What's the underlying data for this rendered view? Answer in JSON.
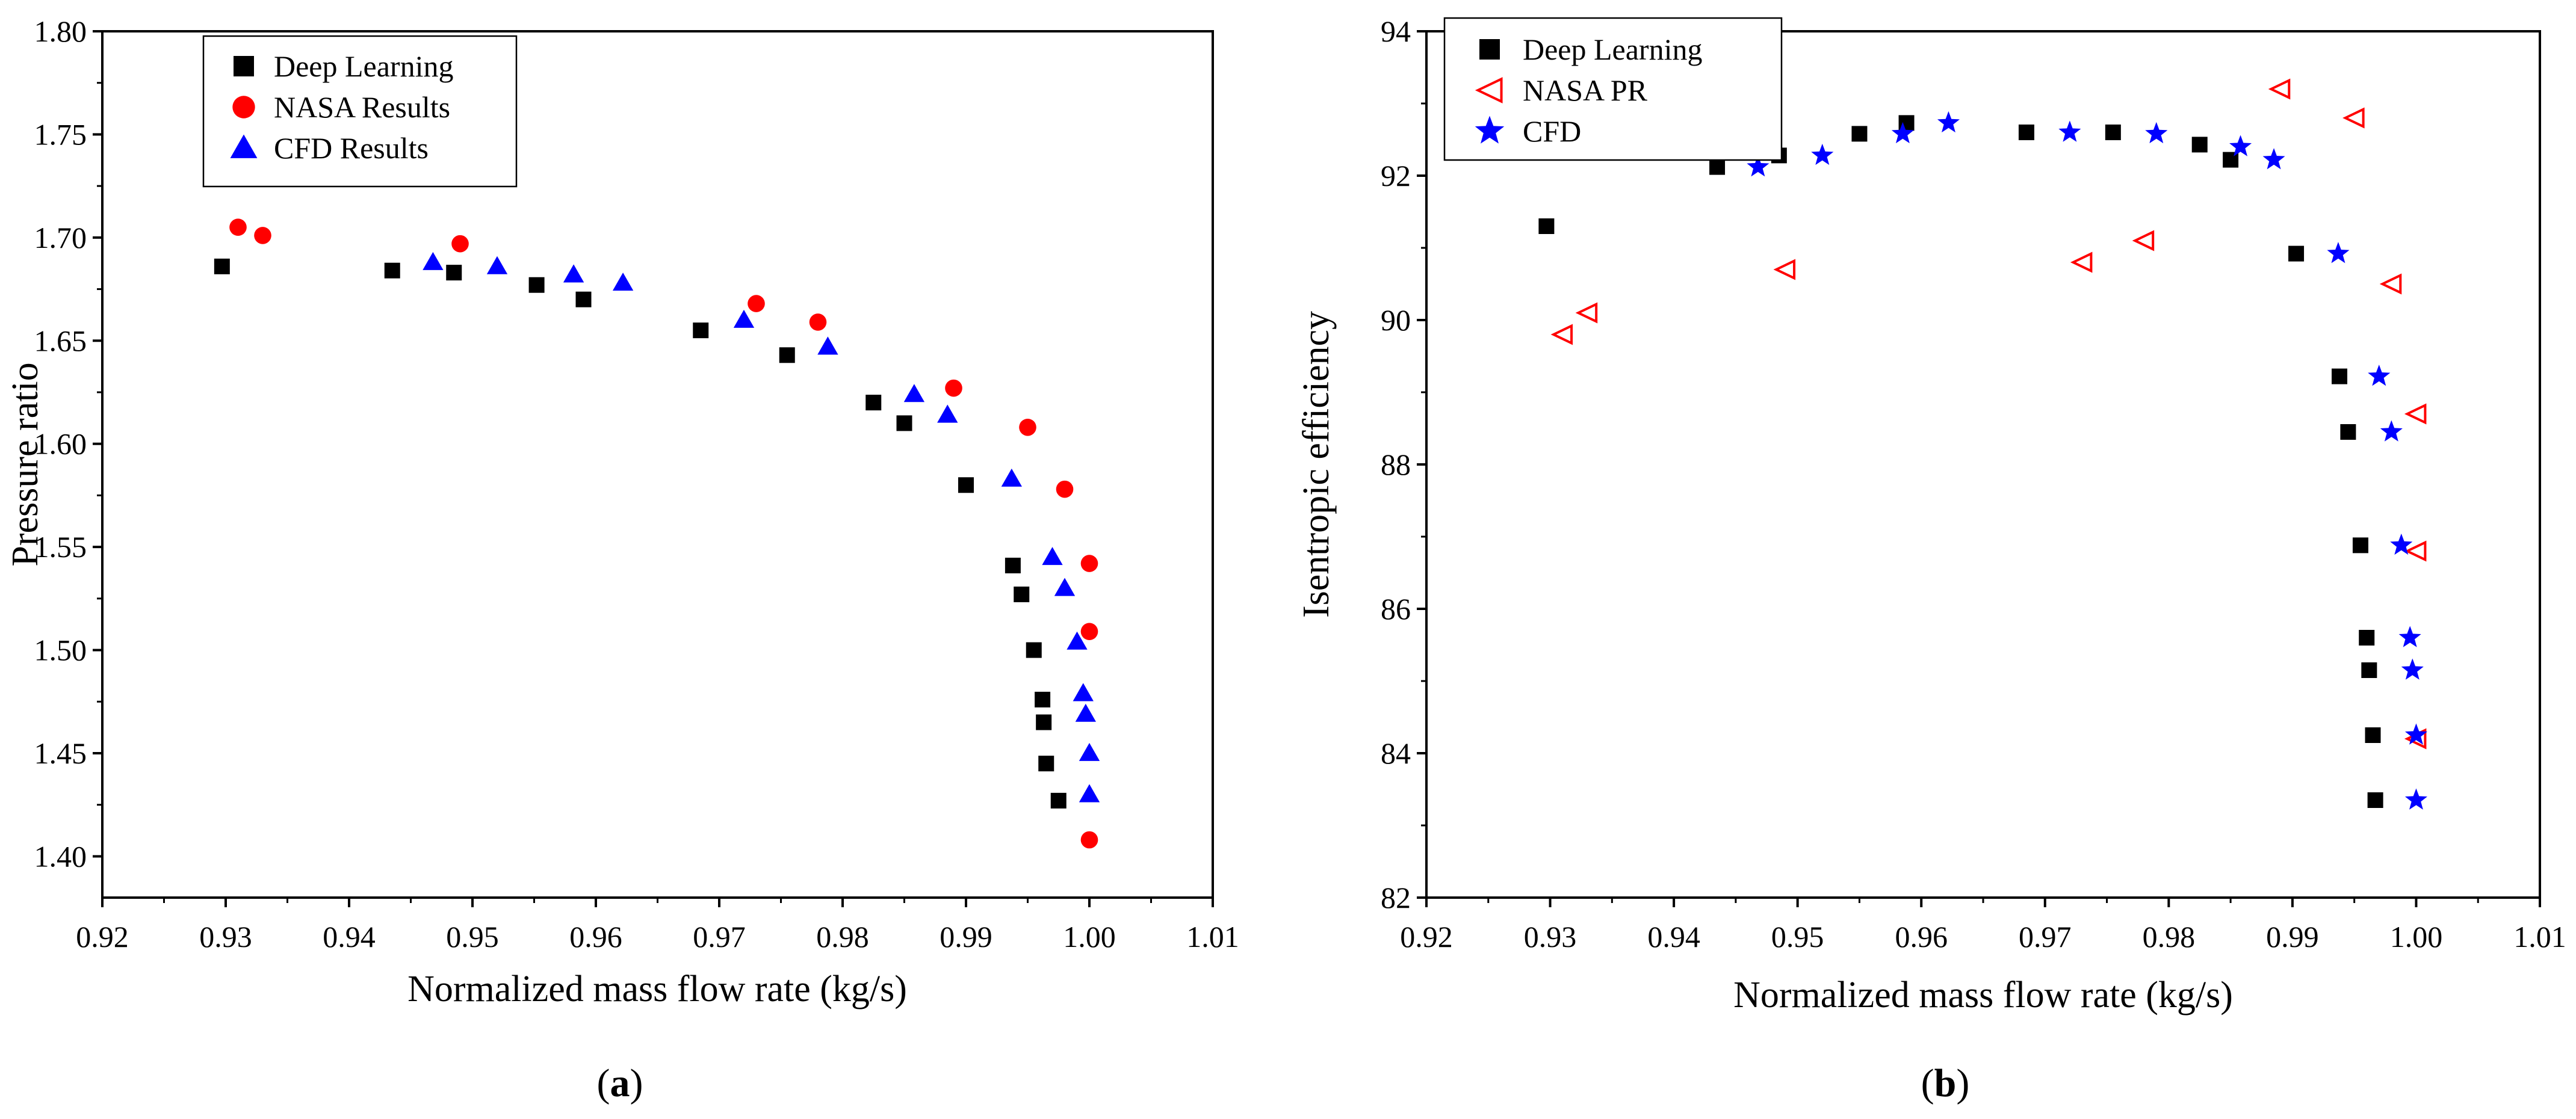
{
  "chart_data": [
    {
      "type": "scatter",
      "id": "a",
      "caption": {
        "open": "(",
        "letter": "a",
        "close": ")"
      },
      "title": "",
      "xlabel": "Normalized mass flow rate (kg/s)",
      "ylabel": "Pressure ratio",
      "xlim": [
        0.92,
        1.01
      ],
      "ylim": [
        1.38,
        1.8
      ],
      "xticks": [
        "0.92",
        "0.93",
        "0.94",
        "0.95",
        "0.96",
        "0.97",
        "0.98",
        "0.99",
        "1.00",
        "1.01"
      ],
      "yticks": [
        "1.40",
        "1.45",
        "1.50",
        "1.55",
        "1.60",
        "1.65",
        "1.70",
        "1.75",
        "1.80"
      ],
      "legend_position": "top-left",
      "series": [
        {
          "name": "Deep Learning",
          "marker": "square",
          "color": "#000000",
          "x": [
            0.9297,
            0.9435,
            0.9485,
            0.9552,
            0.959,
            0.9685,
            0.9755,
            0.9825,
            0.985,
            0.99,
            0.9938,
            0.9945,
            0.9955,
            0.9962,
            0.9963,
            0.9965,
            0.9975
          ],
          "y": [
            1.686,
            1.684,
            1.683,
            1.677,
            1.67,
            1.655,
            1.643,
            1.62,
            1.61,
            1.58,
            1.541,
            1.527,
            1.5,
            1.476,
            1.465,
            1.445,
            1.427
          ]
        },
        {
          "name": "NASA Results",
          "marker": "circle",
          "color": "#ff0000",
          "x": [
            0.931,
            0.933,
            0.949,
            0.973,
            0.978,
            0.989,
            0.995,
            0.998,
            1.0,
            1.0,
            1.0
          ],
          "y": [
            1.705,
            1.701,
            1.697,
            1.668,
            1.659,
            1.627,
            1.608,
            1.578,
            1.542,
            1.509,
            1.408
          ]
        },
        {
          "name": "CFD Results",
          "marker": "triangle",
          "color": "#0000ff",
          "x": [
            0.9468,
            0.952,
            0.9582,
            0.9622,
            0.972,
            0.9788,
            0.9858,
            0.9885,
            0.9937,
            0.997,
            0.998,
            0.999,
            0.9995,
            0.9997,
            1.0,
            1.0
          ],
          "y": [
            1.688,
            1.686,
            1.682,
            1.678,
            1.66,
            1.647,
            1.624,
            1.614,
            1.583,
            1.545,
            1.53,
            1.504,
            1.479,
            1.469,
            1.45,
            1.43
          ]
        }
      ]
    },
    {
      "type": "scatter",
      "id": "b",
      "caption": {
        "open": "(",
        "letter": "b",
        "close": ")"
      },
      "title": "",
      "xlabel": "Normalized mass flow rate (kg/s)",
      "ylabel": "Isentropic efficiency",
      "xlim": [
        0.92,
        1.01
      ],
      "ylim": [
        82,
        94
      ],
      "xticks": [
        "0.92",
        "0.93",
        "0.94",
        "0.95",
        "0.96",
        "0.97",
        "0.98",
        "0.99",
        "1.00",
        "1.01"
      ],
      "yticks": [
        "82",
        "84",
        "86",
        "88",
        "90",
        "92",
        "94"
      ],
      "legend_position": "top-left",
      "series": [
        {
          "name": "Deep Learning",
          "marker": "square",
          "color": "#000000",
          "x": [
            0.9297,
            0.9435,
            0.9485,
            0.955,
            0.9588,
            0.9685,
            0.9755,
            0.9825,
            0.985,
            0.9903,
            0.9938,
            0.9945,
            0.9955,
            0.996,
            0.9962,
            0.9965,
            0.9967
          ],
          "y": [
            91.3,
            92.12,
            92.28,
            92.58,
            92.73,
            92.6,
            92.6,
            92.43,
            92.22,
            90.92,
            89.22,
            88.45,
            86.88,
            85.6,
            85.15,
            84.25,
            83.35
          ]
        },
        {
          "name": "NASA PR",
          "marker": "left-triangle",
          "color": "#ff0000",
          "x": [
            0.931,
            0.933,
            0.949,
            0.973,
            0.978,
            0.989,
            0.995,
            0.998,
            1.0,
            1.0,
            1.0
          ],
          "y": [
            89.8,
            90.1,
            90.7,
            90.8,
            91.1,
            93.2,
            92.8,
            90.5,
            88.7,
            86.8,
            84.2
          ]
        },
        {
          "name": "CFD",
          "marker": "star",
          "color": "#0000ff",
          "x": [
            0.9468,
            0.952,
            0.9585,
            0.9622,
            0.972,
            0.979,
            0.9858,
            0.9885,
            0.9937,
            0.997,
            0.998,
            0.9988,
            0.9995,
            0.9997,
            1.0,
            1.0
          ],
          "y": [
            92.12,
            92.28,
            92.58,
            92.73,
            92.6,
            92.58,
            92.4,
            92.22,
            90.92,
            89.22,
            88.45,
            86.88,
            85.6,
            85.15,
            84.25,
            83.35
          ]
        }
      ]
    }
  ]
}
